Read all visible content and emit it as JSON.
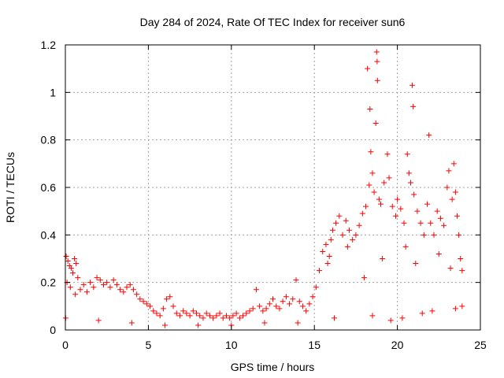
{
  "chart_data": {
    "type": "scatter",
    "title": "Day 284 of 2024, Rate Of TEC Index for receiver sun6",
    "xlabel": "GPS time / hours",
    "ylabel": "ROTI / TECUs",
    "xlim": [
      0,
      25
    ],
    "ylim": [
      0,
      1.2
    ],
    "xticks": [
      0,
      5,
      10,
      15,
      20,
      25
    ],
    "xtick_labels": [
      "0",
      "5",
      "10",
      "15",
      "20",
      "25"
    ],
    "yticks": [
      0,
      0.2,
      0.4,
      0.6,
      0.8,
      1.0,
      1.2
    ],
    "ytick_labels": [
      "0",
      "0.2",
      "0.4",
      "0.6",
      "0.8",
      "1",
      "1.2"
    ],
    "grid": true,
    "marker": "+",
    "color": "#ff0000",
    "series": [
      {
        "name": "ROTI",
        "points": [
          [
            0.05,
            0.31
          ],
          [
            0.15,
            0.29
          ],
          [
            0.25,
            0.27
          ],
          [
            0.35,
            0.26
          ],
          [
            0.45,
            0.24
          ],
          [
            0.55,
            0.3
          ],
          [
            0.65,
            0.28
          ],
          [
            0.75,
            0.22
          ],
          [
            0.1,
            0.2
          ],
          [
            0.3,
            0.18
          ],
          [
            0.6,
            0.15
          ],
          [
            0.9,
            0.17
          ],
          [
            1.1,
            0.19
          ],
          [
            1.3,
            0.16
          ],
          [
            1.5,
            0.2
          ],
          [
            1.7,
            0.18
          ],
          [
            1.9,
            0.22
          ],
          [
            2.1,
            0.21
          ],
          [
            2.3,
            0.19
          ],
          [
            2.5,
            0.2
          ],
          [
            2.7,
            0.18
          ],
          [
            2.9,
            0.21
          ],
          [
            3.1,
            0.19
          ],
          [
            3.3,
            0.17
          ],
          [
            3.5,
            0.16
          ],
          [
            3.7,
            0.18
          ],
          [
            3.9,
            0.19
          ],
          [
            4.1,
            0.17
          ],
          [
            4.3,
            0.15
          ],
          [
            4.5,
            0.13
          ],
          [
            4.7,
            0.12
          ],
          [
            4.9,
            0.11
          ],
          [
            5.1,
            0.1
          ],
          [
            5.3,
            0.08
          ],
          [
            5.5,
            0.07
          ],
          [
            5.7,
            0.06
          ],
          [
            5.9,
            0.09
          ],
          [
            6.1,
            0.13
          ],
          [
            6.3,
            0.14
          ],
          [
            6.5,
            0.1
          ],
          [
            6.7,
            0.07
          ],
          [
            6.9,
            0.06
          ],
          [
            7.1,
            0.08
          ],
          [
            7.3,
            0.07
          ],
          [
            7.5,
            0.06
          ],
          [
            7.7,
            0.08
          ],
          [
            7.9,
            0.07
          ],
          [
            8.1,
            0.06
          ],
          [
            8.3,
            0.05
          ],
          [
            8.5,
            0.07
          ],
          [
            8.7,
            0.06
          ],
          [
            8.9,
            0.05
          ],
          [
            9.1,
            0.06
          ],
          [
            9.3,
            0.07
          ],
          [
            9.5,
            0.05
          ],
          [
            9.7,
            0.06
          ],
          [
            9.9,
            0.05
          ],
          [
            10.1,
            0.06
          ],
          [
            10.3,
            0.07
          ],
          [
            10.5,
            0.05
          ],
          [
            10.7,
            0.06
          ],
          [
            10.9,
            0.07
          ],
          [
            11.1,
            0.08
          ],
          [
            11.3,
            0.09
          ],
          [
            11.5,
            0.17
          ],
          [
            11.7,
            0.1
          ],
          [
            11.9,
            0.08
          ],
          [
            12.1,
            0.09
          ],
          [
            12.3,
            0.11
          ],
          [
            12.5,
            0.13
          ],
          [
            12.7,
            0.1
          ],
          [
            12.9,
            0.09
          ],
          [
            13.1,
            0.12
          ],
          [
            13.3,
            0.14
          ],
          [
            13.5,
            0.11
          ],
          [
            13.7,
            0.13
          ],
          [
            13.9,
            0.21
          ],
          [
            14.1,
            0.12
          ],
          [
            14.3,
            0.1
          ],
          [
            14.5,
            0.08
          ],
          [
            14.7,
            0.11
          ],
          [
            14.9,
            0.14
          ],
          [
            15.1,
            0.18
          ],
          [
            15.3,
            0.25
          ],
          [
            15.5,
            0.33
          ],
          [
            15.7,
            0.36
          ],
          [
            15.9,
            0.31
          ],
          [
            16.1,
            0.42
          ],
          [
            16.3,
            0.45
          ],
          [
            16.5,
            0.48
          ],
          [
            16.7,
            0.4
          ],
          [
            16.9,
            0.46
          ],
          [
            17.1,
            0.42
          ],
          [
            17.3,
            0.38
          ],
          [
            17.5,
            0.4
          ],
          [
            17.7,
            0.44
          ],
          [
            17.9,
            0.49
          ],
          [
            18.1,
            0.52
          ],
          [
            18.3,
            0.61
          ],
          [
            18.35,
            0.93
          ],
          [
            18.4,
            0.75
          ],
          [
            18.5,
            0.66
          ],
          [
            18.6,
            0.58
          ],
          [
            18.7,
            0.87
          ],
          [
            18.75,
            1.17
          ],
          [
            18.78,
            1.13
          ],
          [
            18.8,
            1.05
          ],
          [
            18.9,
            0.55
          ],
          [
            19.0,
            0.53
          ],
          [
            19.2,
            0.62
          ],
          [
            19.4,
            0.74
          ],
          [
            19.5,
            0.64
          ],
          [
            19.7,
            0.52
          ],
          [
            19.9,
            0.48
          ],
          [
            20.0,
            0.55
          ],
          [
            20.2,
            0.51
          ],
          [
            20.4,
            0.45
          ],
          [
            20.6,
            0.74
          ],
          [
            20.7,
            0.66
          ],
          [
            20.8,
            0.62
          ],
          [
            20.9,
            1.03
          ],
          [
            20.95,
            0.94
          ],
          [
            21.0,
            0.57
          ],
          [
            21.2,
            0.5
          ],
          [
            21.4,
            0.45
          ],
          [
            21.6,
            0.4
          ],
          [
            21.8,
            0.53
          ],
          [
            21.9,
            0.82
          ],
          [
            22.0,
            0.45
          ],
          [
            22.2,
            0.4
          ],
          [
            22.4,
            0.5
          ],
          [
            22.6,
            0.47
          ],
          [
            22.8,
            0.44
          ],
          [
            23.0,
            0.6
          ],
          [
            23.1,
            0.67
          ],
          [
            23.3,
            0.55
          ],
          [
            23.4,
            0.7
          ],
          [
            23.5,
            0.58
          ],
          [
            23.6,
            0.48
          ],
          [
            23.7,
            0.4
          ],
          [
            23.8,
            0.3
          ],
          [
            23.9,
            0.25
          ],
          [
            18.2,
            1.1
          ],
          [
            20.5,
            0.35
          ],
          [
            16.0,
            0.38
          ],
          [
            17.0,
            0.35
          ],
          [
            19.1,
            0.3
          ],
          [
            21.1,
            0.28
          ],
          [
            22.5,
            0.32
          ],
          [
            23.2,
            0.26
          ],
          [
            15.8,
            0.28
          ],
          [
            18.0,
            0.22
          ],
          [
            0.02,
            0.05
          ],
          [
            2.0,
            0.04
          ],
          [
            4.0,
            0.03
          ],
          [
            6.0,
            0.02
          ],
          [
            8.0,
            0.02
          ],
          [
            10.0,
            0.02
          ],
          [
            12.0,
            0.03
          ],
          [
            14.0,
            0.03
          ],
          [
            16.2,
            0.05
          ],
          [
            18.5,
            0.06
          ],
          [
            20.3,
            0.05
          ],
          [
            22.1,
            0.08
          ],
          [
            23.5,
            0.09
          ],
          [
            19.6,
            0.04
          ],
          [
            21.5,
            0.07
          ],
          [
            23.9,
            0.1
          ]
        ]
      }
    ]
  }
}
